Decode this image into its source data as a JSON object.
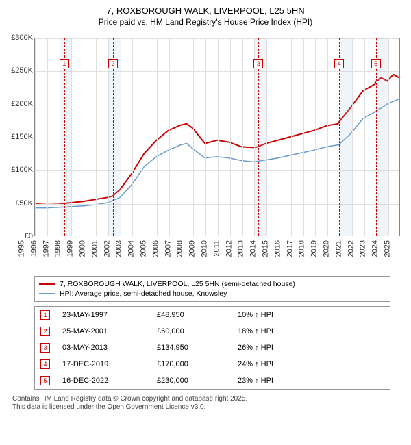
{
  "title_line1": "7, ROXBOROUGH WALK, LIVERPOOL, L25 5HN",
  "title_line2": "Price paid vs. HM Land Registry's House Price Index (HPI)",
  "chart": {
    "type": "line",
    "background_color": "#ffffff",
    "grid_color": "#e0e0e0",
    "axis_color": "#888888",
    "shade_color": "rgba(170,200,230,0.18)",
    "marker_border": "#cc0000",
    "x": {
      "min": 1995,
      "max": 2025,
      "ticks": [
        1995,
        1996,
        1997,
        1998,
        1999,
        2000,
        2001,
        2002,
        2003,
        2004,
        2005,
        2006,
        2007,
        2008,
        2009,
        2010,
        2011,
        2012,
        2013,
        2014,
        2015,
        2016,
        2017,
        2018,
        2019,
        2020,
        2021,
        2022,
        2023,
        2024,
        2025
      ],
      "label_fontsize": 11
    },
    "y": {
      "min": 0,
      "max": 300000,
      "ticks": [
        0,
        50000,
        100000,
        150000,
        200000,
        250000,
        300000
      ],
      "tick_labels": [
        "£0",
        "£50K",
        "£100K",
        "£150K",
        "£200K",
        "£250K",
        "£300K"
      ],
      "label_fontsize": 11
    },
    "shaded_years": [
      1997,
      2001,
      2013,
      2020,
      2023
    ],
    "vlines": [
      {
        "x": 1997.4,
        "color": "#cc0000"
      },
      {
        "x": 2001.4,
        "color": "#cc0000"
      },
      {
        "x": 2013.34,
        "color": "#cc0000"
      },
      {
        "x": 2019.96,
        "color": "#cc0000"
      },
      {
        "x": 2022.96,
        "color": "#cc0000"
      }
    ],
    "markers": [
      {
        "n": "1",
        "x": 1997.4,
        "y": 262000
      },
      {
        "n": "2",
        "x": 2001.4,
        "y": 262000
      },
      {
        "n": "3",
        "x": 2013.34,
        "y": 262000
      },
      {
        "n": "4",
        "x": 2019.96,
        "y": 262000
      },
      {
        "n": "5",
        "x": 2022.96,
        "y": 262000
      }
    ],
    "series": [
      {
        "name": "price_paid",
        "label": "7, ROXBOROUGH WALK, LIVERPOOL, L25 5HN (semi-detached house)",
        "color": "#cc0000",
        "width": 2,
        "points": [
          [
            1995,
            48000
          ],
          [
            1996,
            47000
          ],
          [
            1997,
            47500
          ],
          [
            1997.4,
            48950
          ],
          [
            1998,
            50000
          ],
          [
            1999,
            52000
          ],
          [
            2000,
            55000
          ],
          [
            2001,
            58000
          ],
          [
            2001.4,
            60000
          ],
          [
            2002,
            70000
          ],
          [
            2003,
            95000
          ],
          [
            2004,
            125000
          ],
          [
            2005,
            145000
          ],
          [
            2006,
            160000
          ],
          [
            2007,
            168000
          ],
          [
            2007.5,
            170000
          ],
          [
            2008,
            163000
          ],
          [
            2009,
            140000
          ],
          [
            2010,
            145000
          ],
          [
            2011,
            142000
          ],
          [
            2012,
            135000
          ],
          [
            2013,
            134000
          ],
          [
            2013.34,
            134950
          ],
          [
            2014,
            140000
          ],
          [
            2015,
            145000
          ],
          [
            2016,
            150000
          ],
          [
            2017,
            155000
          ],
          [
            2018,
            160000
          ],
          [
            2019,
            167000
          ],
          [
            2019.96,
            170000
          ],
          [
            2020,
            172000
          ],
          [
            2021,
            195000
          ],
          [
            2022,
            220000
          ],
          [
            2022.96,
            230000
          ],
          [
            2023,
            232000
          ],
          [
            2023.5,
            240000
          ],
          [
            2024,
            235000
          ],
          [
            2024.5,
            245000
          ],
          [
            2025,
            240000
          ]
        ]
      },
      {
        "name": "hpi",
        "label": "HPI: Average price, semi-detached house, Knowsley",
        "color": "#6699cc",
        "width": 1.5,
        "points": [
          [
            1995,
            42000
          ],
          [
            1996,
            42000
          ],
          [
            1997,
            43000
          ],
          [
            1998,
            44000
          ],
          [
            1999,
            45000
          ],
          [
            2000,
            47000
          ],
          [
            2001,
            50000
          ],
          [
            2002,
            58000
          ],
          [
            2003,
            78000
          ],
          [
            2004,
            105000
          ],
          [
            2005,
            120000
          ],
          [
            2006,
            130000
          ],
          [
            2007,
            138000
          ],
          [
            2007.5,
            140000
          ],
          [
            2008,
            132000
          ],
          [
            2009,
            118000
          ],
          [
            2010,
            120000
          ],
          [
            2011,
            118000
          ],
          [
            2012,
            114000
          ],
          [
            2013,
            112000
          ],
          [
            2014,
            115000
          ],
          [
            2015,
            118000
          ],
          [
            2016,
            122000
          ],
          [
            2017,
            126000
          ],
          [
            2018,
            130000
          ],
          [
            2019,
            135000
          ],
          [
            2020,
            138000
          ],
          [
            2021,
            155000
          ],
          [
            2022,
            178000
          ],
          [
            2023,
            188000
          ],
          [
            2024,
            200000
          ],
          [
            2025,
            208000
          ]
        ]
      }
    ]
  },
  "legend": {
    "items": [
      {
        "color": "#cc0000",
        "label": "7, ROXBOROUGH WALK, LIVERPOOL, L25 5HN (semi-detached house)"
      },
      {
        "color": "#6699cc",
        "label": "HPI: Average price, semi-detached house, Knowsley"
      }
    ]
  },
  "transactions": [
    {
      "n": "1",
      "date": "23-MAY-1997",
      "price": "£48,950",
      "pct": "10% ↑ HPI"
    },
    {
      "n": "2",
      "date": "25-MAY-2001",
      "price": "£60,000",
      "pct": "18% ↑ HPI"
    },
    {
      "n": "3",
      "date": "03-MAY-2013",
      "price": "£134,950",
      "pct": "26% ↑ HPI"
    },
    {
      "n": "4",
      "date": "17-DEC-2019",
      "price": "£170,000",
      "pct": "24% ↑ HPI"
    },
    {
      "n": "5",
      "date": "16-DEC-2022",
      "price": "£230,000",
      "pct": "23% ↑ HPI"
    }
  ],
  "footer_line1": "Contains HM Land Registry data © Crown copyright and database right 2025.",
  "footer_line2": "This data is licensed under the Open Government Licence v3.0."
}
